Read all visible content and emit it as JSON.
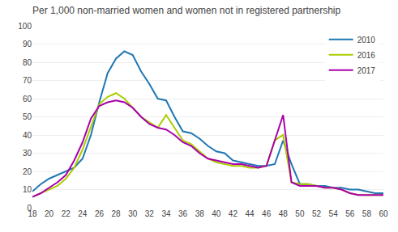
{
  "chart_data": {
    "type": "line",
    "title": "Per 1,000 non-married women and women not in registered partnership",
    "x": [
      18,
      19,
      20,
      21,
      22,
      23,
      24,
      25,
      26,
      27,
      28,
      29,
      30,
      31,
      32,
      33,
      34,
      35,
      36,
      37,
      38,
      39,
      40,
      41,
      42,
      43,
      44,
      45,
      46,
      47,
      48,
      49,
      50,
      51,
      52,
      53,
      54,
      55,
      56,
      57,
      58,
      59,
      60
    ],
    "series": [
      {
        "name": "2010",
        "color": "#1F77B4",
        "values": [
          9,
          13,
          16,
          18,
          20,
          22,
          27,
          40,
          58,
          74,
          82,
          86,
          84,
          75,
          68,
          60,
          59,
          50,
          42,
          41,
          38,
          34,
          31,
          30,
          26,
          25,
          24,
          23,
          23,
          24,
          37,
          24,
          13,
          13,
          12,
          12,
          11,
          11,
          10,
          10,
          9,
          8,
          8
        ]
      },
      {
        "name": "2016",
        "color": "#AACC00",
        "values": [
          6,
          8,
          10,
          12,
          16,
          22,
          32,
          45,
          57,
          61,
          63,
          60,
          55,
          50,
          47,
          44,
          51,
          44,
          37,
          35,
          31,
          27,
          25,
          24,
          23,
          23,
          22,
          22,
          23,
          37,
          40,
          14,
          13,
          13,
          12,
          11,
          11,
          10,
          8,
          7,
          7,
          7,
          7
        ]
      },
      {
        "name": "2017",
        "color": "#AA00AA",
        "values": [
          6,
          8,
          11,
          14,
          18,
          26,
          36,
          49,
          56,
          58,
          59,
          58,
          55,
          50,
          46,
          44,
          43,
          40,
          36,
          34,
          30,
          27,
          26,
          25,
          24,
          24,
          23,
          22,
          23,
          37,
          51,
          14,
          12,
          12,
          12,
          11,
          11,
          10,
          8,
          7,
          7,
          7,
          7
        ]
      }
    ],
    "xlim": [
      18,
      60
    ],
    "xticks": [
      18,
      20,
      22,
      24,
      26,
      28,
      30,
      32,
      34,
      36,
      38,
      40,
      42,
      44,
      46,
      48,
      50,
      52,
      54,
      56,
      58,
      60
    ],
    "ylim": [
      0,
      100
    ],
    "yticks": [
      0,
      10,
      20,
      30,
      40,
      50,
      60,
      70,
      80,
      90,
      100
    ],
    "grid": true,
    "legend": "upper right"
  }
}
